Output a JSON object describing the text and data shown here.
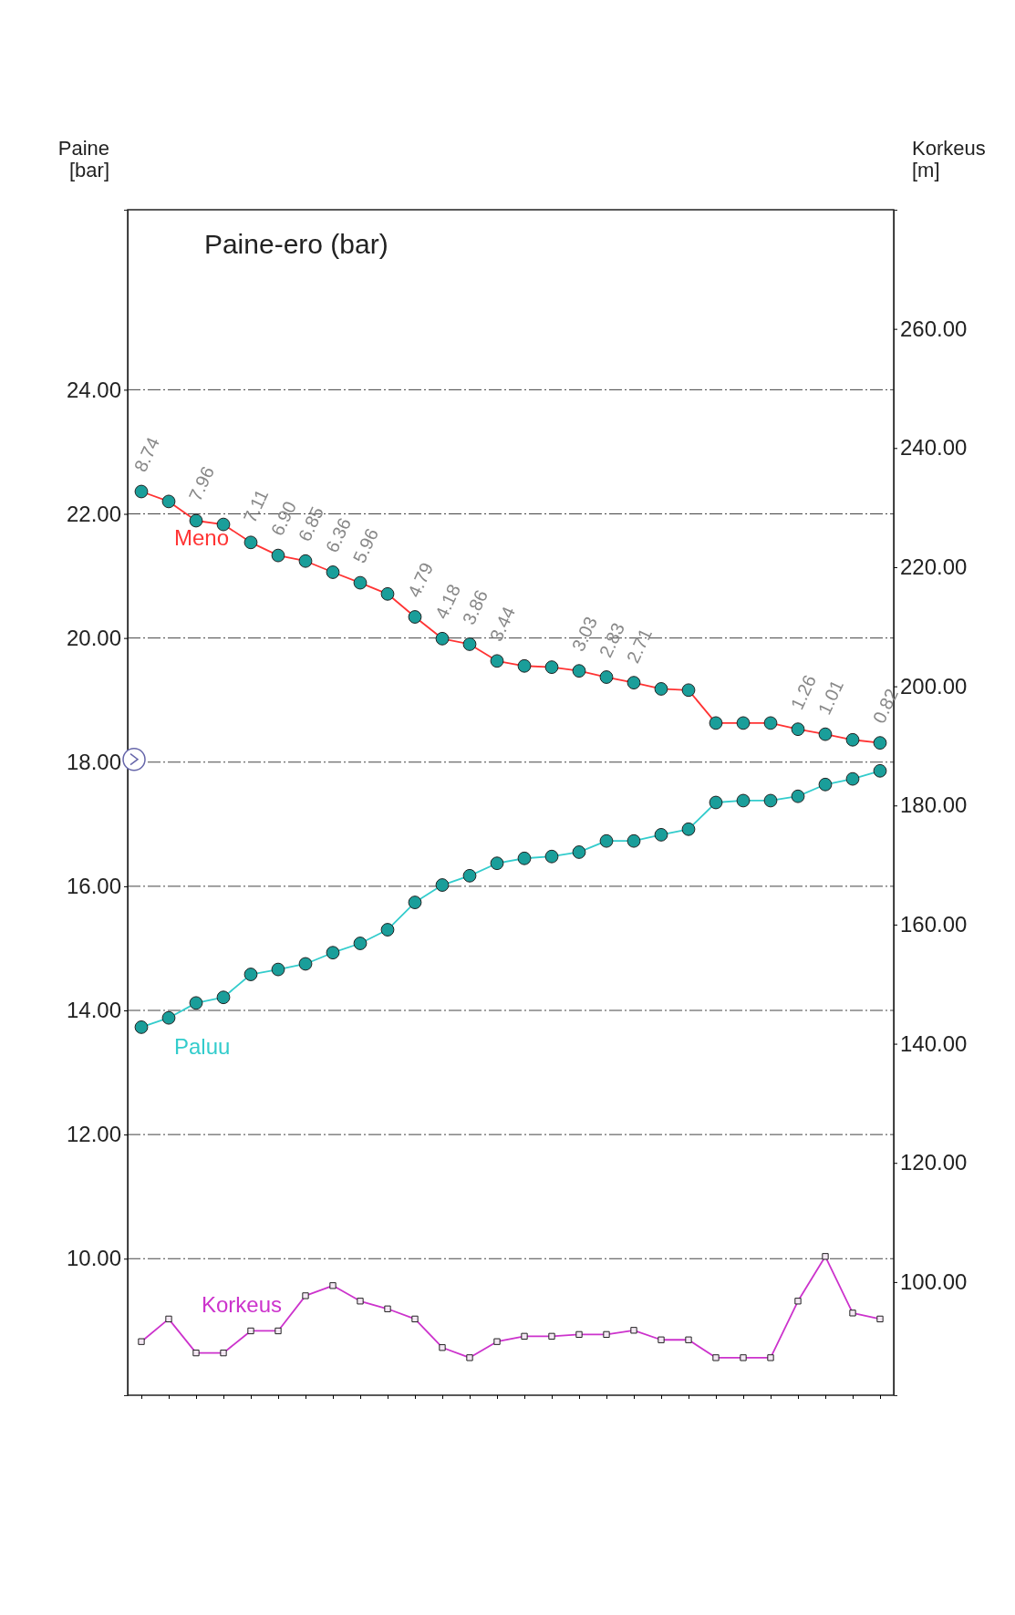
{
  "chart_data": {
    "type": "line",
    "title": "Paine-ero (bar)",
    "ylabel": "Paine [bar]",
    "y2label": "Korkeus [m]",
    "categories": [
      null,
      null,
      null,
      null,
      null,
      null,
      null,
      null,
      null,
      null,
      null,
      null,
      null,
      null,
      null,
      null,
      null,
      null,
      null,
      null,
      null,
      null,
      null,
      null,
      null,
      null,
      null,
      null
    ],
    "ylim": [
      7.8,
      26.9
    ],
    "yticks": [
      {
        "value": 10,
        "label": "10.00"
      },
      {
        "value": 12,
        "label": "12.00"
      },
      {
        "value": 14,
        "label": "14.00"
      },
      {
        "value": 16,
        "label": "16.00"
      },
      {
        "value": 18,
        "label": "18.00"
      },
      {
        "value": 20,
        "label": "20.00"
      },
      {
        "value": 22,
        "label": "22.00"
      },
      {
        "value": 24,
        "label": "24.00"
      }
    ],
    "y2lim": [
      81,
      280
    ],
    "y2ticks": [
      {
        "value": 100,
        "label": "100.00"
      },
      {
        "value": 120,
        "label": "120.00"
      },
      {
        "value": 140,
        "label": "140.00"
      },
      {
        "value": 160,
        "label": "160.00"
      },
      {
        "value": 180,
        "label": "180.00"
      },
      {
        "value": 200,
        "label": "200.00"
      },
      {
        "value": 220,
        "label": "220.00"
      },
      {
        "value": 240,
        "label": "240.00"
      },
      {
        "value": 260,
        "label": "260.00"
      }
    ],
    "grid": "y",
    "line_style": "solid",
    "series": [
      {
        "name": "Meno",
        "color": "#ff3333",
        "marker": "circle",
        "values": [
          22.36,
          22.2,
          21.89,
          21.83,
          21.54,
          21.33,
          21.24,
          21.06,
          20.89,
          20.71,
          20.34,
          19.99,
          19.9,
          19.63,
          19.55,
          19.53,
          19.47,
          19.37,
          19.28,
          19.18,
          19.16,
          18.63,
          18.63,
          18.63,
          18.53,
          18.45,
          18.36,
          18.31
        ]
      },
      {
        "name": "Paluu",
        "color": "#33cccc",
        "marker": "circle",
        "values": [
          13.73,
          13.88,
          14.12,
          14.21,
          14.58,
          14.66,
          14.75,
          14.93,
          15.08,
          15.3,
          15.74,
          16.02,
          16.17,
          16.37,
          16.45,
          16.48,
          16.55,
          16.73,
          16.73,
          16.83,
          16.92,
          17.35,
          17.38,
          17.38,
          17.45,
          17.64,
          17.73,
          17.86
        ]
      },
      {
        "name": "Korkeus",
        "color": "#cc33cc",
        "marker": "square",
        "axis": "y2",
        "values": [
          90.0,
          93.8,
          88.1,
          88.1,
          91.8,
          91.8,
          97.7,
          99.4,
          96.8,
          95.5,
          93.8,
          89.0,
          87.3,
          90.0,
          90.9,
          90.9,
          91.2,
          91.2,
          91.9,
          90.3,
          90.3,
          87.3,
          87.3,
          87.3,
          96.8,
          104.3,
          94.8,
          93.8
        ]
      }
    ],
    "annotations": [
      {
        "text": "8.74",
        "y": 22.36
      },
      {
        "text": "7.96",
        "y": 21.89
      },
      {
        "text": "7.11",
        "y": 21.54
      },
      {
        "text": "6.90",
        "y": 21.33
      },
      {
        "text": "6.85",
        "y": 21.24
      },
      {
        "text": "6.36",
        "y": 21.06
      },
      {
        "text": "5.96",
        "y": 20.89
      },
      {
        "text": "4.79",
        "y": 20.34
      },
      {
        "text": "4.18",
        "y": 19.99
      },
      {
        "text": "3.86",
        "y": 19.9
      },
      {
        "text": "3.44",
        "y": 19.63
      },
      {
        "text": "3.03",
        "y": 19.47
      },
      {
        "text": "2.83",
        "y": 19.37
      },
      {
        "text": "2.71",
        "y": 19.28
      },
      {
        "text": "1.26",
        "y": 18.53
      },
      {
        "text": "1.01",
        "y": 18.45
      },
      {
        "text": "0.82",
        "y": 18.31
      }
    ]
  }
}
